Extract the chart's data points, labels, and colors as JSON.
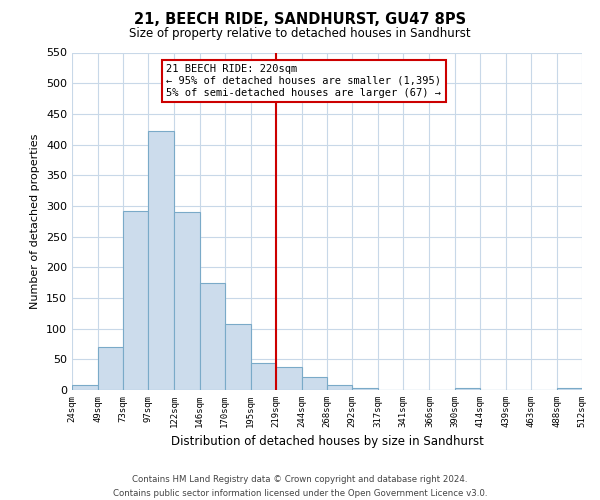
{
  "title": "21, BEECH RIDE, SANDHURST, GU47 8PS",
  "subtitle": "Size of property relative to detached houses in Sandhurst",
  "bar_values": [
    8,
    70,
    292,
    422,
    290,
    175,
    107,
    44,
    38,
    22,
    8,
    4,
    0,
    0,
    0,
    3,
    0,
    0,
    0,
    3
  ],
  "bin_edges": [
    24,
    49,
    73,
    97,
    122,
    146,
    170,
    195,
    219,
    244,
    268,
    292,
    317,
    341,
    366,
    390,
    414,
    439,
    463,
    488,
    512
  ],
  "x_labels": [
    "24sqm",
    "49sqm",
    "73sqm",
    "97sqm",
    "122sqm",
    "146sqm",
    "170sqm",
    "195sqm",
    "219sqm",
    "244sqm",
    "268sqm",
    "292sqm",
    "317sqm",
    "341sqm",
    "366sqm",
    "390sqm",
    "414sqm",
    "439sqm",
    "463sqm",
    "488sqm",
    "512sqm"
  ],
  "bar_color": "#ccdcec",
  "bar_edge_color": "#7aaac8",
  "ylabel": "Number of detached properties",
  "xlabel": "Distribution of detached houses by size in Sandhurst",
  "ylim": [
    0,
    550
  ],
  "yticks": [
    0,
    50,
    100,
    150,
    200,
    250,
    300,
    350,
    400,
    450,
    500,
    550
  ],
  "vline_x": 219,
  "vline_color": "#cc0000",
  "annotation_title": "21 BEECH RIDE: 220sqm",
  "annotation_line1": "← 95% of detached houses are smaller (1,395)",
  "annotation_line2": "5% of semi-detached houses are larger (67) →",
  "annotation_box_color": "#ffffff",
  "annotation_box_edge": "#cc0000",
  "footer_line1": "Contains HM Land Registry data © Crown copyright and database right 2024.",
  "footer_line2": "Contains public sector information licensed under the Open Government Licence v3.0.",
  "background_color": "#ffffff",
  "grid_color": "#c8d8e8"
}
